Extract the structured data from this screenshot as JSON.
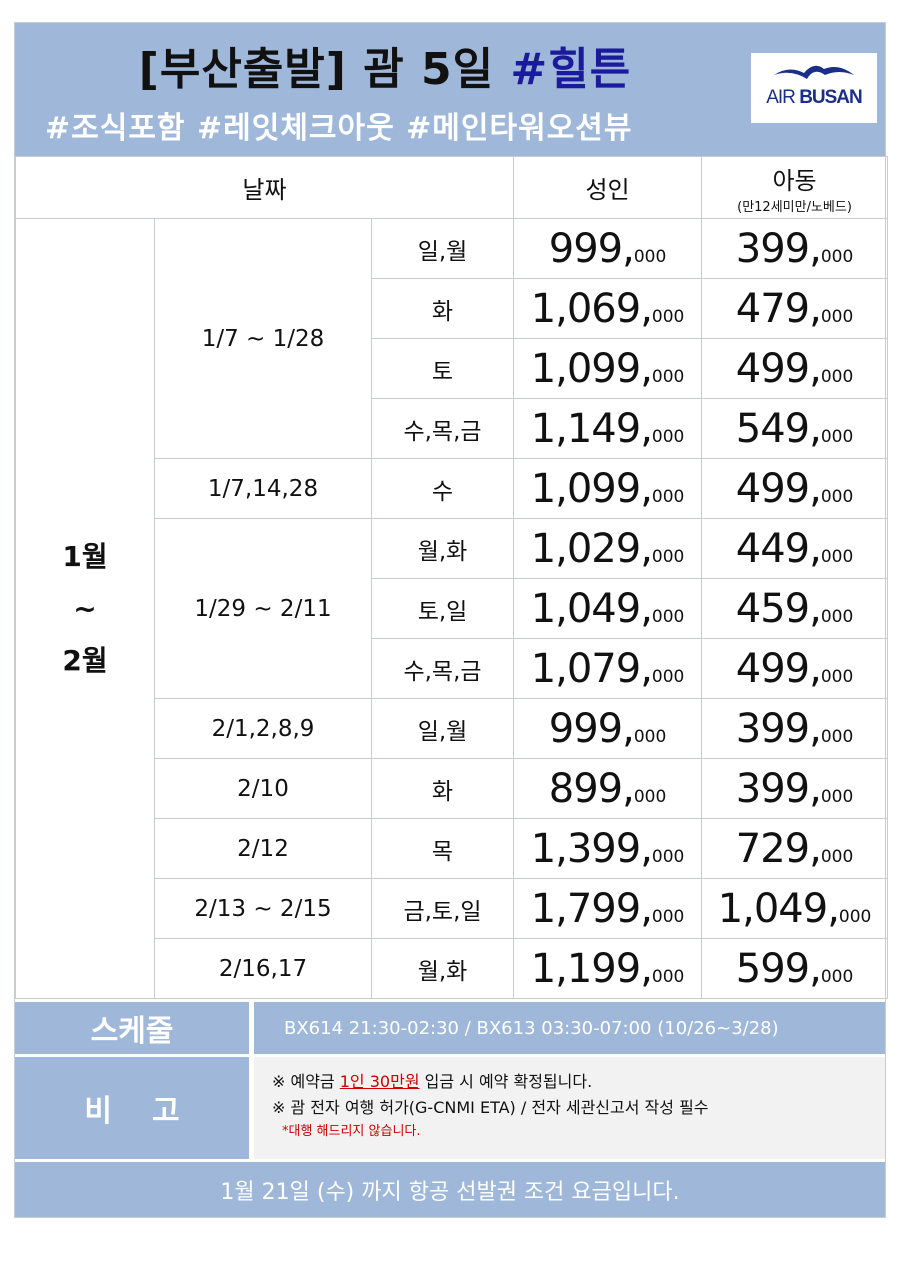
{
  "header": {
    "title_main": "[부산출발] 괌 5일 ",
    "title_highlight": "#힐튼",
    "tags": "#조식포함 #레잇체크아웃 #메인타워오션뷰",
    "logo_text_a": "AIR ",
    "logo_text_b": "BUSAN",
    "colors": {
      "band": "#9fb8d9",
      "highlight": "#1a1a9a"
    }
  },
  "table": {
    "headers": {
      "date": "날짜",
      "adult": "성인",
      "child": "아동",
      "child_note": "(만12세미만/노베드)"
    },
    "month": [
      "1월",
      "~",
      "2월"
    ],
    "groups": [
      {
        "date": "1/7 ~ 1/28",
        "rows": [
          {
            "days": "일,월",
            "adult": "999,000",
            "child": "399,000"
          },
          {
            "days": "화",
            "adult": "1,069,000",
            "child": "479,000"
          },
          {
            "days": "토",
            "adult": "1,099,000",
            "child": "499,000"
          },
          {
            "days": "수,목,금",
            "adult": "1,149,000",
            "child": "549,000"
          }
        ]
      },
      {
        "date": "1/7,14,28",
        "rows": [
          {
            "days": "수",
            "adult": "1,099,000",
            "child": "499,000"
          }
        ]
      },
      {
        "date": "1/29 ~ 2/11",
        "rows": [
          {
            "days": "월,화",
            "adult": "1,029,000",
            "child": "449,000"
          },
          {
            "days": "토,일",
            "adult": "1,049,000",
            "child": "459,000"
          },
          {
            "days": "수,목,금",
            "adult": "1,079,000",
            "child": "499,000"
          }
        ]
      },
      {
        "date": "2/1,2,8,9",
        "rows": [
          {
            "days": "일,월",
            "adult": "999,000",
            "child": "399,000"
          }
        ]
      },
      {
        "date": "2/10",
        "rows": [
          {
            "days": "화",
            "adult": "899,000",
            "child": "399,000"
          }
        ]
      },
      {
        "date": "2/12",
        "rows": [
          {
            "days": "목",
            "adult": "1,399,000",
            "child": "729,000"
          }
        ]
      },
      {
        "date": "2/13 ~ 2/15",
        "rows": [
          {
            "days": "금,토,일",
            "adult": "1,799,000",
            "child": "1,049,000"
          }
        ]
      },
      {
        "date": "2/16,17",
        "rows": [
          {
            "days": "월,화",
            "adult": "1,199,000",
            "child": "599,000"
          }
        ]
      }
    ]
  },
  "schedule": {
    "label": "스케줄",
    "value": "BX614 21:30-02:30 / BX613 03:30-07:00 (10/26~3/28)"
  },
  "remarks": {
    "label": "비고",
    "line1_a": "※ 예약금 ",
    "line1_red": "1인 30만원",
    "line1_b": " 입금 시 예약 확정됩니다.",
    "line2": "※ 괌 전자 여행 허가(G-CNMI ETA) / 전자 세관신고서 작성 필수",
    "note": "*대행 해드리지 않습니다."
  },
  "footer": "1월 21일 (수) 까지 항공 선발권 조건 요금입니다."
}
